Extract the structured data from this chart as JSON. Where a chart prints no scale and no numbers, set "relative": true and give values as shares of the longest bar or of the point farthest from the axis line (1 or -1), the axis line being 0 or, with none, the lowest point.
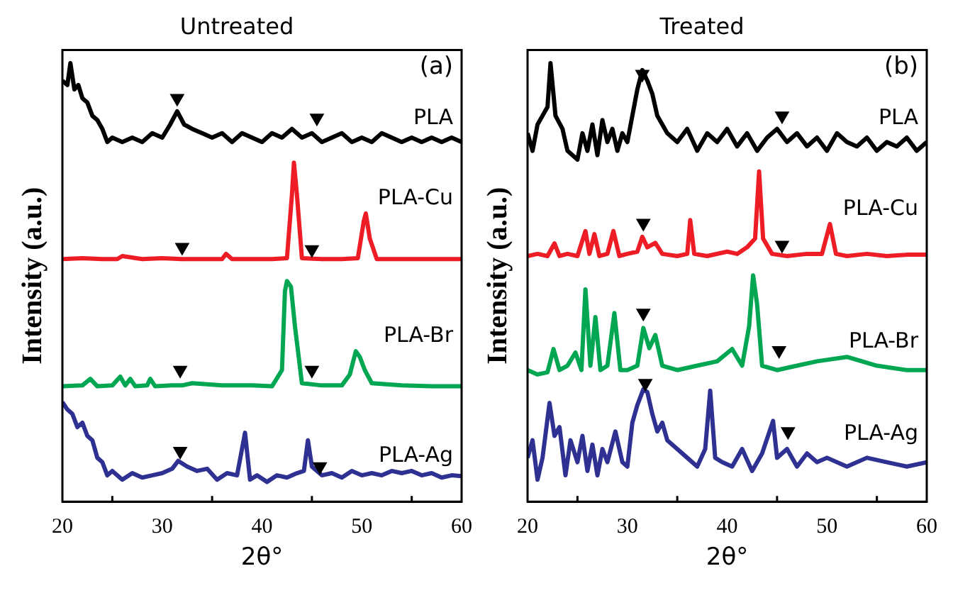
{
  "chart_data": [
    {
      "type": "line",
      "title": "Untreated",
      "xlabel": "2θ°",
      "ylabel": "Intensity (a.u.)",
      "relative": true,
      "marker": "none",
      "xlim": [
        20,
        60
      ],
      "xticks": [
        20,
        30,
        40,
        50,
        60
      ],
      "annotations": [
        "(a)"
      ],
      "series": [
        {
          "type": "scatter",
          "marker": "triangle",
          "color": "#000000",
          "x": [
            31.5,
            45.5,
            32,
            45,
            31.8,
            45,
            31.8,
            45.8
          ],
          "values": [
            0.92,
            0.875,
            0.58,
            0.575,
            0.3,
            0.3,
            0.115,
            0.08
          ]
        },
        {
          "name": "PLA",
          "color": "#000000",
          "x": [
            20,
            20.5,
            20.8,
            21.2,
            21.6,
            22,
            22.5,
            23,
            23.5,
            24,
            24.5,
            25,
            26,
            27,
            28,
            29,
            30,
            30.8,
            31.5,
            32.2,
            33,
            34,
            35,
            36,
            37,
            38,
            39,
            40,
            41,
            42,
            43,
            44,
            45,
            46,
            47,
            48,
            49,
            50,
            51,
            52,
            53,
            54,
            55,
            56,
            57,
            58,
            59,
            60
          ],
          "values": [
            0.96,
            0.95,
            1.0,
            0.94,
            0.95,
            0.92,
            0.91,
            0.88,
            0.87,
            0.85,
            0.82,
            0.83,
            0.82,
            0.83,
            0.82,
            0.84,
            0.83,
            0.86,
            0.89,
            0.86,
            0.85,
            0.84,
            0.83,
            0.84,
            0.82,
            0.84,
            0.83,
            0.82,
            0.84,
            0.83,
            0.85,
            0.83,
            0.84,
            0.82,
            0.83,
            0.84,
            0.82,
            0.83,
            0.82,
            0.84,
            0.83,
            0.82,
            0.83,
            0.82,
            0.83,
            0.82,
            0.83,
            0.82
          ]
        },
        {
          "name": "PLA-Cu",
          "color": "#ee1c25",
          "x": [
            20,
            22,
            24,
            25.5,
            26,
            28,
            30,
            32,
            34,
            36,
            36.4,
            37,
            39,
            41,
            42.5,
            43,
            43.2,
            43.5,
            44,
            46,
            48,
            49.6,
            50.2,
            50.4,
            50.8,
            51.5,
            54,
            57,
            60
          ],
          "values": [
            0.553,
            0.555,
            0.553,
            0.553,
            0.56,
            0.553,
            0.555,
            0.553,
            0.553,
            0.553,
            0.565,
            0.553,
            0.553,
            0.553,
            0.555,
            0.7,
            0.773,
            0.7,
            0.555,
            0.553,
            0.553,
            0.555,
            0.64,
            0.657,
            0.6,
            0.553,
            0.553,
            0.553,
            0.553
          ]
        },
        {
          "name": "PLA-Br",
          "color": "#00a651",
          "x": [
            20,
            22,
            22.8,
            23.5,
            25,
            25.8,
            26.3,
            26.8,
            27.3,
            28.5,
            28.8,
            29.3,
            31,
            32,
            33,
            36,
            39,
            41,
            42,
            42.3,
            42.5,
            42.9,
            43.3,
            44,
            46,
            48,
            48.8,
            49.4,
            49.8,
            50.3,
            51,
            54,
            57,
            60
          ],
          "values": [
            0.263,
            0.265,
            0.28,
            0.263,
            0.265,
            0.285,
            0.265,
            0.28,
            0.263,
            0.265,
            0.28,
            0.263,
            0.265,
            0.265,
            0.27,
            0.265,
            0.265,
            0.263,
            0.3,
            0.48,
            0.503,
            0.49,
            0.4,
            0.27,
            0.265,
            0.265,
            0.29,
            0.343,
            0.33,
            0.3,
            0.27,
            0.265,
            0.263,
            0.263
          ]
        },
        {
          "name": "PLA-Ag",
          "color": "#2e3192",
          "x": [
            20,
            20.5,
            21,
            21.5,
            22,
            22.5,
            23,
            23.5,
            24,
            24.5,
            25,
            26,
            27,
            28,
            29,
            30,
            31,
            31.6,
            32.5,
            33.5,
            34.5,
            35.5,
            36.5,
            37.5,
            38.3,
            38.8,
            39.5,
            40.5,
            41.5,
            42.5,
            43.5,
            44.2,
            44.6,
            45,
            46,
            47,
            48,
            49,
            50,
            51,
            52,
            53,
            54,
            55,
            56,
            57,
            58,
            59,
            60
          ],
          "values": [
            0.227,
            0.21,
            0.2,
            0.17,
            0.18,
            0.15,
            0.14,
            0.1,
            0.09,
            0.06,
            0.07,
            0.05,
            0.065,
            0.055,
            0.06,
            0.065,
            0.075,
            0.093,
            0.08,
            0.07,
            0.075,
            0.05,
            0.065,
            0.06,
            0.157,
            0.05,
            0.06,
            0.045,
            0.06,
            0.055,
            0.065,
            0.07,
            0.14,
            0.08,
            0.06,
            0.065,
            0.055,
            0.07,
            0.06,
            0.065,
            0.06,
            0.07,
            0.065,
            0.07,
            0.06,
            0.065,
            0.055,
            0.06,
            0.058
          ]
        }
      ]
    },
    {
      "type": "line",
      "title": "Treated",
      "xlabel": "2θ°",
      "ylabel": "Intensity (a.u.)",
      "relative": true,
      "marker": "none",
      "xlim": [
        20,
        60
      ],
      "xticks": [
        20,
        30,
        40,
        50,
        60
      ],
      "annotations": [
        "(b)"
      ],
      "series": [
        {
          "type": "scatter",
          "marker": "triangle",
          "color": "#000000",
          "x": [
            31.5,
            45.5,
            31.6,
            45.5,
            31.6,
            45.2,
            31.8,
            46.1
          ],
          "values": [
            0.975,
            0.88,
            0.635,
            0.585,
            0.43,
            0.345,
            0.27,
            0.16
          ]
        },
        {
          "name": "PLA",
          "color": "#000000",
          "x": [
            20,
            20.5,
            21,
            21.5,
            22,
            22.3,
            22.8,
            23.5,
            24,
            25,
            25.5,
            26,
            26.5,
            27,
            27.5,
            28,
            28.5,
            29,
            29.5,
            30,
            30.5,
            31,
            31.5,
            32,
            32.5,
            33,
            33.5,
            34,
            35,
            36,
            37,
            38,
            39,
            40,
            41,
            42,
            43,
            44,
            45,
            46,
            47,
            48,
            49,
            50,
            51,
            52,
            53,
            54,
            55,
            56,
            57,
            58,
            59,
            60
          ],
          "values": [
            0.84,
            0.8,
            0.86,
            0.88,
            0.9,
            1.0,
            0.88,
            0.85,
            0.8,
            0.78,
            0.84,
            0.8,
            0.86,
            0.79,
            0.87,
            0.82,
            0.85,
            0.8,
            0.84,
            0.82,
            0.88,
            0.94,
            0.984,
            0.96,
            0.93,
            0.88,
            0.86,
            0.84,
            0.82,
            0.85,
            0.8,
            0.84,
            0.82,
            0.85,
            0.81,
            0.84,
            0.8,
            0.83,
            0.85,
            0.82,
            0.84,
            0.81,
            0.83,
            0.8,
            0.84,
            0.82,
            0.81,
            0.83,
            0.8,
            0.82,
            0.81,
            0.83,
            0.8,
            0.82
          ]
        },
        {
          "name": "PLA-Cu",
          "color": "#ee1c25",
          "x": [
            20,
            21,
            22,
            22.7,
            23.2,
            24,
            25,
            25.8,
            26.2,
            26.7,
            27.2,
            28,
            28.6,
            29.2,
            30,
            31,
            31.5,
            32,
            32.8,
            33.5,
            35,
            36,
            36.3,
            36.7,
            38,
            40,
            41,
            42,
            42.8,
            43.2,
            43.6,
            44.5,
            46,
            48,
            49.5,
            50.3,
            50.9,
            52,
            54,
            56,
            58,
            60
          ],
          "values": [
            0.56,
            0.565,
            0.56,
            0.589,
            0.56,
            0.565,
            0.56,
            0.617,
            0.565,
            0.61,
            0.56,
            0.565,
            0.617,
            0.56,
            0.565,
            0.57,
            0.604,
            0.58,
            0.59,
            0.565,
            0.56,
            0.565,
            0.642,
            0.565,
            0.56,
            0.57,
            0.565,
            0.58,
            0.6,
            0.753,
            0.6,
            0.565,
            0.56,
            0.565,
            0.565,
            0.633,
            0.565,
            0.56,
            0.565,
            0.56,
            0.563,
            0.563
          ]
        },
        {
          "name": "PLA-Br",
          "color": "#00a651",
          "x": [
            20,
            21,
            22,
            22.6,
            23.2,
            24,
            24.8,
            25.4,
            25.8,
            26.3,
            26.8,
            27.3,
            28,
            28.7,
            29.3,
            30,
            31,
            31.6,
            32.2,
            32.8,
            33.5,
            35,
            37,
            39,
            40.5,
            41.5,
            42.2,
            42.6,
            43,
            43.5,
            45,
            47,
            49,
            52,
            55,
            58,
            60
          ],
          "values": [
            0.3,
            0.29,
            0.295,
            0.348,
            0.3,
            0.31,
            0.34,
            0.3,
            0.484,
            0.31,
            0.421,
            0.3,
            0.31,
            0.43,
            0.3,
            0.3,
            0.31,
            0.396,
            0.35,
            0.38,
            0.31,
            0.3,
            0.31,
            0.32,
            0.348,
            0.31,
            0.4,
            0.516,
            0.45,
            0.31,
            0.3,
            0.31,
            0.32,
            0.33,
            0.31,
            0.3,
            0.3
          ]
        },
        {
          "name": "PLA-Ag",
          "color": "#2e3192",
          "x": [
            20,
            20.5,
            21,
            21.5,
            22.2,
            22.7,
            23.2,
            23.8,
            24.3,
            25,
            25.5,
            26,
            26.5,
            27,
            27.5,
            28,
            28.8,
            29.5,
            30,
            30.5,
            31,
            31.6,
            32,
            32.5,
            33,
            33.5,
            34,
            35,
            36,
            37,
            37.8,
            38.3,
            38.8,
            39.5,
            40.5,
            41.5,
            42.5,
            43.5,
            44.6,
            45,
            46,
            47,
            48,
            49,
            50,
            52,
            54,
            56,
            58,
            60
          ],
          "values": [
            0.1,
            0.14,
            0.05,
            0.1,
            0.225,
            0.15,
            0.17,
            0.06,
            0.14,
            0.09,
            0.15,
            0.07,
            0.13,
            0.06,
            0.12,
            0.09,
            0.16,
            0.09,
            0.08,
            0.18,
            0.22,
            0.256,
            0.25,
            0.2,
            0.16,
            0.18,
            0.14,
            0.12,
            0.1,
            0.08,
            0.12,
            0.253,
            0.1,
            0.09,
            0.08,
            0.12,
            0.07,
            0.11,
            0.184,
            0.1,
            0.12,
            0.08,
            0.11,
            0.09,
            0.1,
            0.08,
            0.1,
            0.09,
            0.08,
            0.09
          ]
        }
      ]
    }
  ]
}
